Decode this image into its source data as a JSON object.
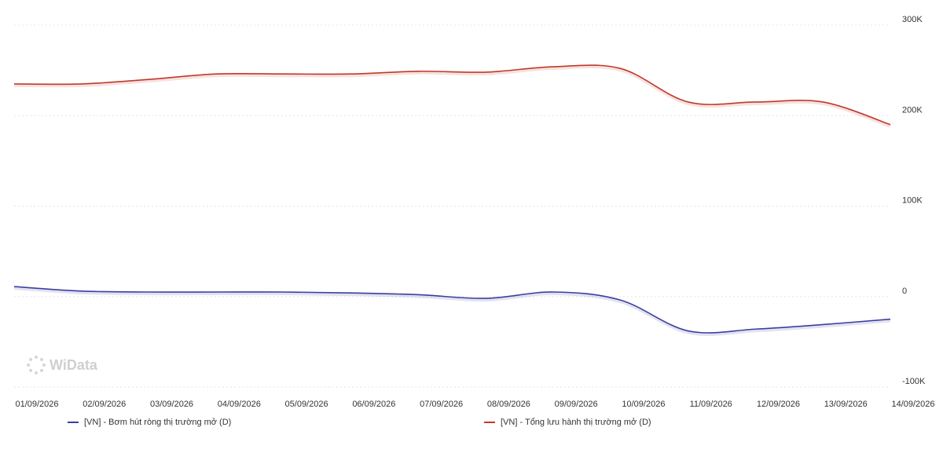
{
  "watermark": {
    "text": "WiData"
  },
  "chart_data": {
    "type": "line",
    "x": [
      "01/09/2026",
      "02/09/2026",
      "03/09/2026",
      "04/09/2026",
      "05/09/2026",
      "06/09/2026",
      "07/09/2026",
      "08/09/2026",
      "09/09/2026",
      "10/09/2026",
      "11/09/2026",
      "12/09/2026",
      "13/09/2026",
      "14/09/2026"
    ],
    "yticks": [
      {
        "value": 300000,
        "label": "300K"
      },
      {
        "value": 200000,
        "label": "200K"
      },
      {
        "value": 100000,
        "label": "100K"
      },
      {
        "value": 0,
        "label": "0"
      },
      {
        "value": -100000,
        "label": "-100K"
      }
    ],
    "ylim": [
      -100000,
      300000
    ],
    "y_axis_side": "right",
    "grid": true,
    "legend_position": "bottom",
    "series": [
      {
        "name": "[VN] - Bơm hút ròng thị trường mở (D)",
        "color": "#3a3f9e",
        "values": [
          11000,
          6000,
          5000,
          5000,
          5000,
          4000,
          2000,
          -2000,
          5000,
          -4000,
          -38000,
          -36000,
          -31000,
          -25000
        ]
      },
      {
        "name": "[VN] - Tổng lưu hành thị trường mở (D)",
        "color": "#c0392b",
        "values": [
          235000,
          235000,
          240000,
          246000,
          246000,
          246000,
          249000,
          248000,
          254000,
          252000,
          215000,
          215000,
          215000,
          190000
        ]
      }
    ]
  }
}
